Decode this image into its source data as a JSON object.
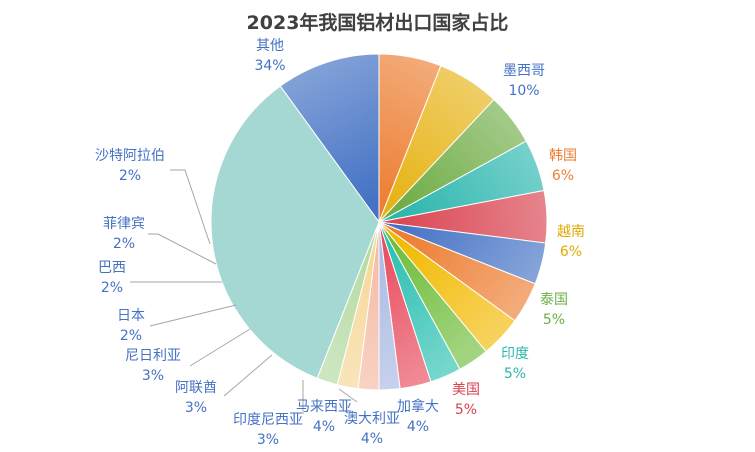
{
  "chart_data": {
    "type": "pie",
    "title": "2023年我国铝材出口国家占比",
    "slices": [
      {
        "label": "墨西哥",
        "value": 10,
        "value_label": "10%",
        "color": "#4472C4"
      },
      {
        "label": "韩国",
        "value": 6,
        "value_label": "6%",
        "color": "#ED7D31"
      },
      {
        "label": "越南",
        "value": 6,
        "value_label": "6%",
        "color": "#E7B417"
      },
      {
        "label": "泰国",
        "value": 5,
        "value_label": "5%",
        "color": "#70AD47"
      },
      {
        "label": "印度",
        "value": 5,
        "value_label": "5%",
        "color": "#2BB6AE"
      },
      {
        "label": "美国",
        "value": 5,
        "value_label": "5%",
        "color": "#D9414E"
      },
      {
        "label": "加拿大",
        "value": 4,
        "value_label": "4%",
        "color": "#4472C4"
      },
      {
        "label": "澳大利亚",
        "value": 4,
        "value_label": "4%",
        "color": "#ED7D31"
      },
      {
        "label": "马来西亚",
        "value": 4,
        "value_label": "4%",
        "color": "#F2BA02"
      },
      {
        "label": "印度尼西亚",
        "value": 3,
        "value_label": "3%",
        "color": "#70BD3C"
      },
      {
        "label": "阿联酋",
        "value": 3,
        "value_label": "3%",
        "color": "#2BC0B0"
      },
      {
        "label": "尼日利亚",
        "value": 3,
        "value_label": "3%",
        "color": "#E84B5E"
      },
      {
        "label": "日本",
        "value": 2,
        "value_label": "2%",
        "color": "#A9B8E2"
      },
      {
        "label": "巴西",
        "value": 2,
        "value_label": "2%",
        "color": "#F4B9A2"
      },
      {
        "label": "菲律宾",
        "value": 2,
        "value_label": "2%",
        "color": "#F6D694"
      },
      {
        "label": "沙特阿拉伯",
        "value": 2,
        "value_label": "2%",
        "color": "#B2D99F"
      },
      {
        "label": "其他",
        "value": 34,
        "value_label": "34%",
        "color": "#A5D8D2"
      }
    ],
    "legend": "none",
    "label_colors": {
      "墨西哥": "#4472C4",
      "韩国": "#ED7D31",
      "越南": "#E0AA05",
      "泰国": "#70AD47",
      "印度": "#2BB6AE",
      "美国": "#D9414E",
      "default": "#4472C4"
    }
  }
}
